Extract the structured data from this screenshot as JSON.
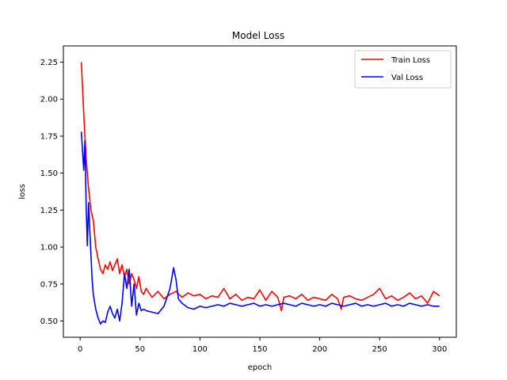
{
  "chart_data": {
    "type": "line",
    "title": "Model Loss",
    "xlabel": "epoch",
    "ylabel": "loss",
    "xlim": [
      -14,
      314
    ],
    "ylim": [
      0.39,
      2.36
    ],
    "xticks": [
      0,
      50,
      100,
      150,
      200,
      250,
      300
    ],
    "yticks": [
      0.5,
      0.75,
      1.0,
      1.25,
      1.5,
      1.75,
      2.0,
      2.25
    ],
    "ytick_labels": [
      "0.50",
      "0.75",
      "1.00",
      "1.25",
      "1.50",
      "1.75",
      "2.00",
      "2.25"
    ],
    "legend_position": "top-right",
    "series": [
      {
        "name": "Train Loss",
        "color": "#ff0000",
        "x": [
          1,
          3,
          5,
          7,
          9,
          11,
          13,
          15,
          17,
          19,
          21,
          23,
          25,
          27,
          29,
          31,
          33,
          35,
          37,
          39,
          41,
          43,
          45,
          47,
          49,
          51,
          53,
          55,
          60,
          65,
          70,
          75,
          80,
          85,
          90,
          95,
          100,
          105,
          110,
          115,
          120,
          125,
          130,
          135,
          140,
          145,
          150,
          155,
          160,
          165,
          168,
          170,
          175,
          180,
          185,
          190,
          195,
          200,
          205,
          210,
          215,
          218,
          220,
          225,
          230,
          235,
          240,
          245,
          250,
          255,
          260,
          265,
          270,
          275,
          280,
          285,
          290,
          295,
          300
        ],
        "values": [
          2.25,
          1.9,
          1.6,
          1.4,
          1.25,
          1.18,
          1.0,
          0.92,
          0.85,
          0.82,
          0.88,
          0.85,
          0.9,
          0.84,
          0.88,
          0.92,
          0.82,
          0.88,
          0.8,
          0.85,
          0.75,
          0.82,
          0.78,
          0.72,
          0.8,
          0.7,
          0.68,
          0.72,
          0.66,
          0.7,
          0.65,
          0.68,
          0.7,
          0.66,
          0.69,
          0.67,
          0.68,
          0.65,
          0.67,
          0.66,
          0.72,
          0.65,
          0.68,
          0.64,
          0.66,
          0.65,
          0.71,
          0.64,
          0.7,
          0.66,
          0.57,
          0.66,
          0.67,
          0.65,
          0.68,
          0.64,
          0.66,
          0.65,
          0.64,
          0.68,
          0.65,
          0.58,
          0.66,
          0.67,
          0.65,
          0.64,
          0.66,
          0.68,
          0.72,
          0.65,
          0.67,
          0.64,
          0.66,
          0.69,
          0.65,
          0.67,
          0.62,
          0.7,
          0.67
        ]
      },
      {
        "name": "Val Loss",
        "color": "#0000ff",
        "x": [
          1,
          3,
          4,
          5,
          6,
          7,
          9,
          10,
          11,
          13,
          15,
          17,
          19,
          21,
          23,
          25,
          27,
          29,
          31,
          33,
          35,
          37,
          39,
          41,
          43,
          45,
          47,
          49,
          51,
          53,
          55,
          60,
          65,
          70,
          75,
          78,
          80,
          82,
          85,
          90,
          95,
          100,
          105,
          110,
          115,
          120,
          125,
          130,
          135,
          140,
          145,
          150,
          155,
          160,
          165,
          170,
          175,
          180,
          185,
          190,
          195,
          200,
          205,
          210,
          215,
          220,
          225,
          230,
          235,
          240,
          245,
          250,
          255,
          260,
          265,
          270,
          275,
          280,
          285,
          290,
          295,
          300
        ],
        "values": [
          1.78,
          1.52,
          1.72,
          1.28,
          1.01,
          1.3,
          0.95,
          0.78,
          0.68,
          0.58,
          0.52,
          0.48,
          0.5,
          0.49,
          0.56,
          0.6,
          0.55,
          0.52,
          0.58,
          0.5,
          0.62,
          0.82,
          0.72,
          0.85,
          0.6,
          0.75,
          0.54,
          0.62,
          0.57,
          0.58,
          0.57,
          0.56,
          0.55,
          0.6,
          0.72,
          0.86,
          0.78,
          0.65,
          0.62,
          0.59,
          0.58,
          0.6,
          0.59,
          0.6,
          0.61,
          0.6,
          0.62,
          0.61,
          0.6,
          0.61,
          0.62,
          0.6,
          0.61,
          0.6,
          0.61,
          0.62,
          0.61,
          0.6,
          0.62,
          0.61,
          0.6,
          0.61,
          0.6,
          0.62,
          0.61,
          0.6,
          0.61,
          0.62,
          0.6,
          0.61,
          0.6,
          0.61,
          0.62,
          0.6,
          0.61,
          0.6,
          0.62,
          0.61,
          0.6,
          0.61,
          0.6,
          0.6
        ]
      }
    ]
  }
}
